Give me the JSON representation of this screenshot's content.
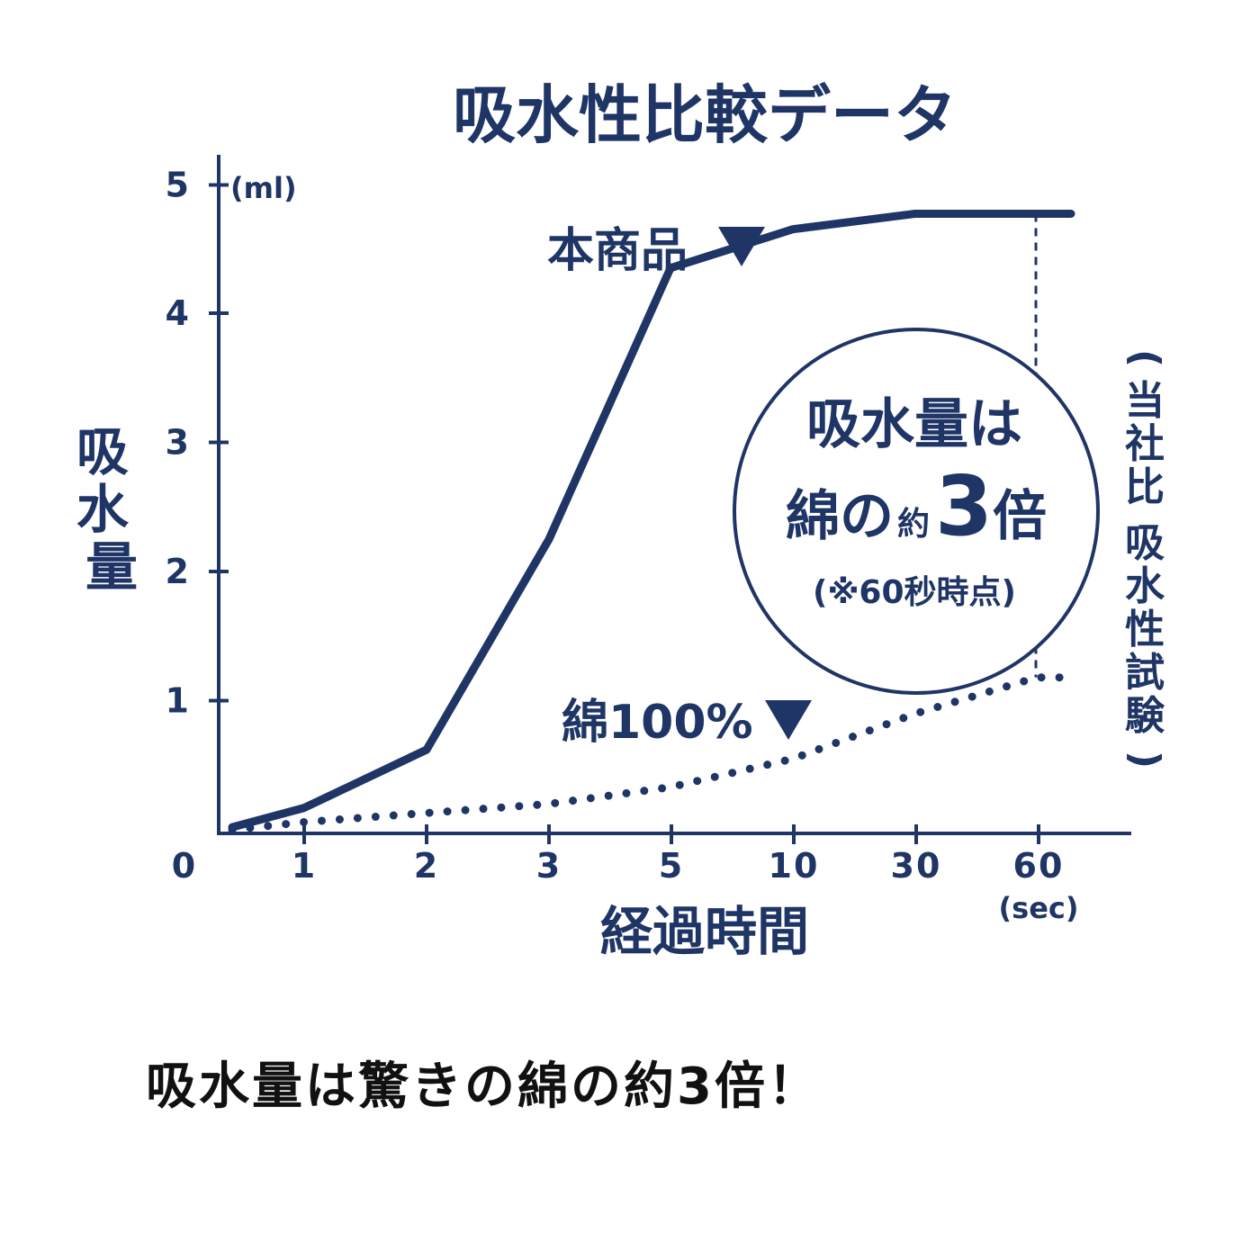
{
  "chart_data": {
    "type": "line",
    "title": "吸水性比較データ",
    "ylabel": "吸水量",
    "xlabel": "経過時間",
    "y_unit": "(ml)",
    "x_unit": "(sec)",
    "ylim": [
      0,
      5
    ],
    "y_ticks": [
      "1",
      "2",
      "3",
      "4",
      "5"
    ],
    "x_ticks": [
      "0",
      "1",
      "2",
      "3",
      "5",
      "10",
      "30",
      "60"
    ],
    "series": [
      {
        "name": "本商品",
        "label": "本商品 ▼",
        "style": "solid",
        "x": [
          "0",
          "1",
          "2",
          "3",
          "5",
          "10",
          "30",
          "60"
        ],
        "values": [
          0.02,
          0.17,
          0.62,
          2.25,
          4.35,
          4.65,
          4.77,
          4.77
        ]
      },
      {
        "name": "綿100%",
        "label": "綿100% ▼",
        "style": "dotted",
        "x": [
          "0",
          "1",
          "2",
          "3",
          "5",
          "10",
          "30",
          "60"
        ],
        "values": [
          0.0,
          0.06,
          0.13,
          0.2,
          0.33,
          0.55,
          0.9,
          1.18
        ]
      }
    ],
    "callout": {
      "line1": "吸水量は",
      "line2_a": "綿の",
      "line2_b": "約",
      "line2_c": "3",
      "line2_d": "倍",
      "note": "(※60秒時点)"
    },
    "side_note_a": "(当社比",
    "side_note_b": "吸水性試験)"
  },
  "caption": "吸水量は驚きの綿の約3倍！",
  "colors": {
    "navy": "#1f3566",
    "caption": "#111111"
  }
}
